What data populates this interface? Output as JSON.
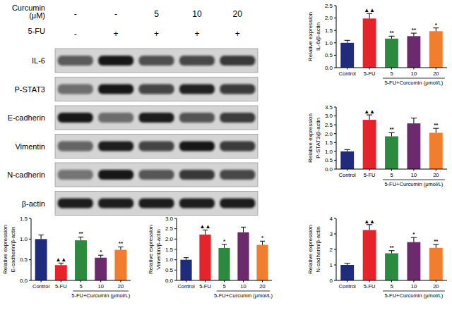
{
  "blot": {
    "treatments": [
      {
        "label": "Curcumin (μM)",
        "values": [
          "-",
          "-",
          "5",
          "10",
          "20"
        ]
      },
      {
        "label": "5-FU",
        "values": [
          "-",
          "+",
          "+",
          "+",
          "+"
        ]
      }
    ],
    "proteins": [
      "IL-6",
      "P-STAT3",
      "E-cadherin",
      "Vimentin",
      "N-cadherin",
      "β-actin"
    ]
  },
  "chart_data": [
    {
      "type": "bar",
      "ylabel": [
        "Relative expression",
        "IL-6/β-actin"
      ],
      "xlabel": "5-FU+Curcumin (μmol/L)",
      "categories": [
        "Control",
        "5-FU",
        "5",
        "10",
        "20"
      ],
      "values": [
        1.0,
        1.98,
        1.17,
        1.27,
        1.47
      ],
      "errors": [
        0.1,
        0.2,
        0.1,
        0.12,
        0.13
      ],
      "colors": [
        "#1f2b7b",
        "#e5232a",
        "#2b8a3e",
        "#6b2a6b",
        "#f07e2e"
      ],
      "annotations": [
        null,
        "▲▲",
        "**",
        "**",
        "*"
      ],
      "ylim": [
        0,
        2.5
      ],
      "yticks": [
        {
          "value": 0,
          "label": "0.0"
        },
        {
          "value": 0.5,
          "label": "0.5"
        },
        {
          "value": 1,
          "label": "1.0"
        },
        {
          "value": 1.5,
          "label": "1.5"
        },
        {
          "value": 2,
          "label": "2.0"
        },
        {
          "value": 2.5,
          "label": "2.5"
        }
      ],
      "grid": false
    },
    {
      "type": "bar",
      "ylabel": [
        "Relative expression",
        "P-STAT3/β-actin"
      ],
      "xlabel": "5-FU+Curcumin (μmol/L)",
      "categories": [
        "Control",
        "5-FU",
        "5",
        "10",
        "20"
      ],
      "values": [
        1.0,
        2.78,
        1.85,
        2.58,
        2.05
      ],
      "errors": [
        0.1,
        0.28,
        0.2,
        0.3,
        0.25
      ],
      "colors": [
        "#1f2b7b",
        "#e5232a",
        "#2b8a3e",
        "#6b2a6b",
        "#f07e2e"
      ],
      "annotations": [
        null,
        "▲▲",
        "**",
        null,
        "**"
      ],
      "ylim": [
        0,
        3.5
      ],
      "yticks": [
        {
          "value": 0,
          "label": "0.0"
        },
        {
          "value": 0.5,
          "label": "0.5"
        },
        {
          "value": 1,
          "label": "1.0"
        },
        {
          "value": 1.5,
          "label": "1.5"
        },
        {
          "value": 2,
          "label": "2.0"
        },
        {
          "value": 2.5,
          "label": "2.5"
        },
        {
          "value": 3,
          "label": "3.0"
        },
        {
          "value": 3.5,
          "label": "3.5"
        }
      ],
      "grid": false
    },
    {
      "type": "bar",
      "ylabel": [
        "Relative expression",
        "E-cadherin/β-actin"
      ],
      "xlabel": "5-FU+Curcumin (μmol/L)",
      "categories": [
        "Control",
        "5-FU",
        "5",
        "10",
        "20"
      ],
      "values": [
        1.0,
        0.37,
        0.97,
        0.55,
        0.74
      ],
      "errors": [
        0.1,
        0.05,
        0.08,
        0.06,
        0.07
      ],
      "colors": [
        "#1f2b7b",
        "#e5232a",
        "#2b8a3e",
        "#6b2a6b",
        "#f07e2e"
      ],
      "annotations": [
        null,
        "▲▲",
        "**",
        "*",
        "**"
      ],
      "ylim": [
        0,
        1.5
      ],
      "yticks": [
        {
          "value": 0,
          "label": "0.0"
        },
        {
          "value": 0.5,
          "label": "0.5"
        },
        {
          "value": 1,
          "label": "1.0"
        },
        {
          "value": 1.5,
          "label": "1.5"
        }
      ],
      "grid": false
    },
    {
      "type": "bar",
      "ylabel": [
        "Relative expression",
        "Vimentin/β-actin"
      ],
      "xlabel": "5-FU+Curcumin (μmol/L)",
      "categories": [
        "Control",
        "5-FU",
        "5",
        "10",
        "20"
      ],
      "values": [
        1.0,
        2.22,
        1.57,
        2.33,
        1.72
      ],
      "errors": [
        0.1,
        0.22,
        0.17,
        0.25,
        0.18
      ],
      "colors": [
        "#1f2b7b",
        "#e5232a",
        "#2b8a3e",
        "#6b2a6b",
        "#f07e2e"
      ],
      "annotations": [
        null,
        "▲▲",
        "*",
        null,
        "*"
      ],
      "ylim": [
        0,
        3
      ],
      "yticks": [
        {
          "value": 0,
          "label": "0.0"
        },
        {
          "value": 0.5,
          "label": "0.5"
        },
        {
          "value": 1,
          "label": "1.0"
        },
        {
          "value": 1.5,
          "label": "1.5"
        },
        {
          "value": 2,
          "label": "2.0"
        },
        {
          "value": 2.5,
          "label": "2.5"
        },
        {
          "value": 3,
          "label": "3.0"
        }
      ],
      "grid": false
    },
    {
      "type": "bar",
      "ylabel": [
        "Relative expression",
        "N-cadherin/β-actin"
      ],
      "xlabel": "5-FU+Curcumin (μmol/L)",
      "categories": [
        "Control",
        "5-FU",
        "5",
        "10",
        "20"
      ],
      "values": [
        1.0,
        3.25,
        1.75,
        2.47,
        2.1
      ],
      "errors": [
        0.1,
        0.35,
        0.17,
        0.3,
        0.22
      ],
      "colors": [
        "#1f2b7b",
        "#e5232a",
        "#2b8a3e",
        "#6b2a6b",
        "#f07e2e"
      ],
      "annotations": [
        null,
        "▲▲",
        "**",
        "*",
        "**"
      ],
      "ylim": [
        0,
        4
      ],
      "yticks": [
        0,
        1,
        2,
        3,
        4
      ],
      "grid": false
    }
  ]
}
